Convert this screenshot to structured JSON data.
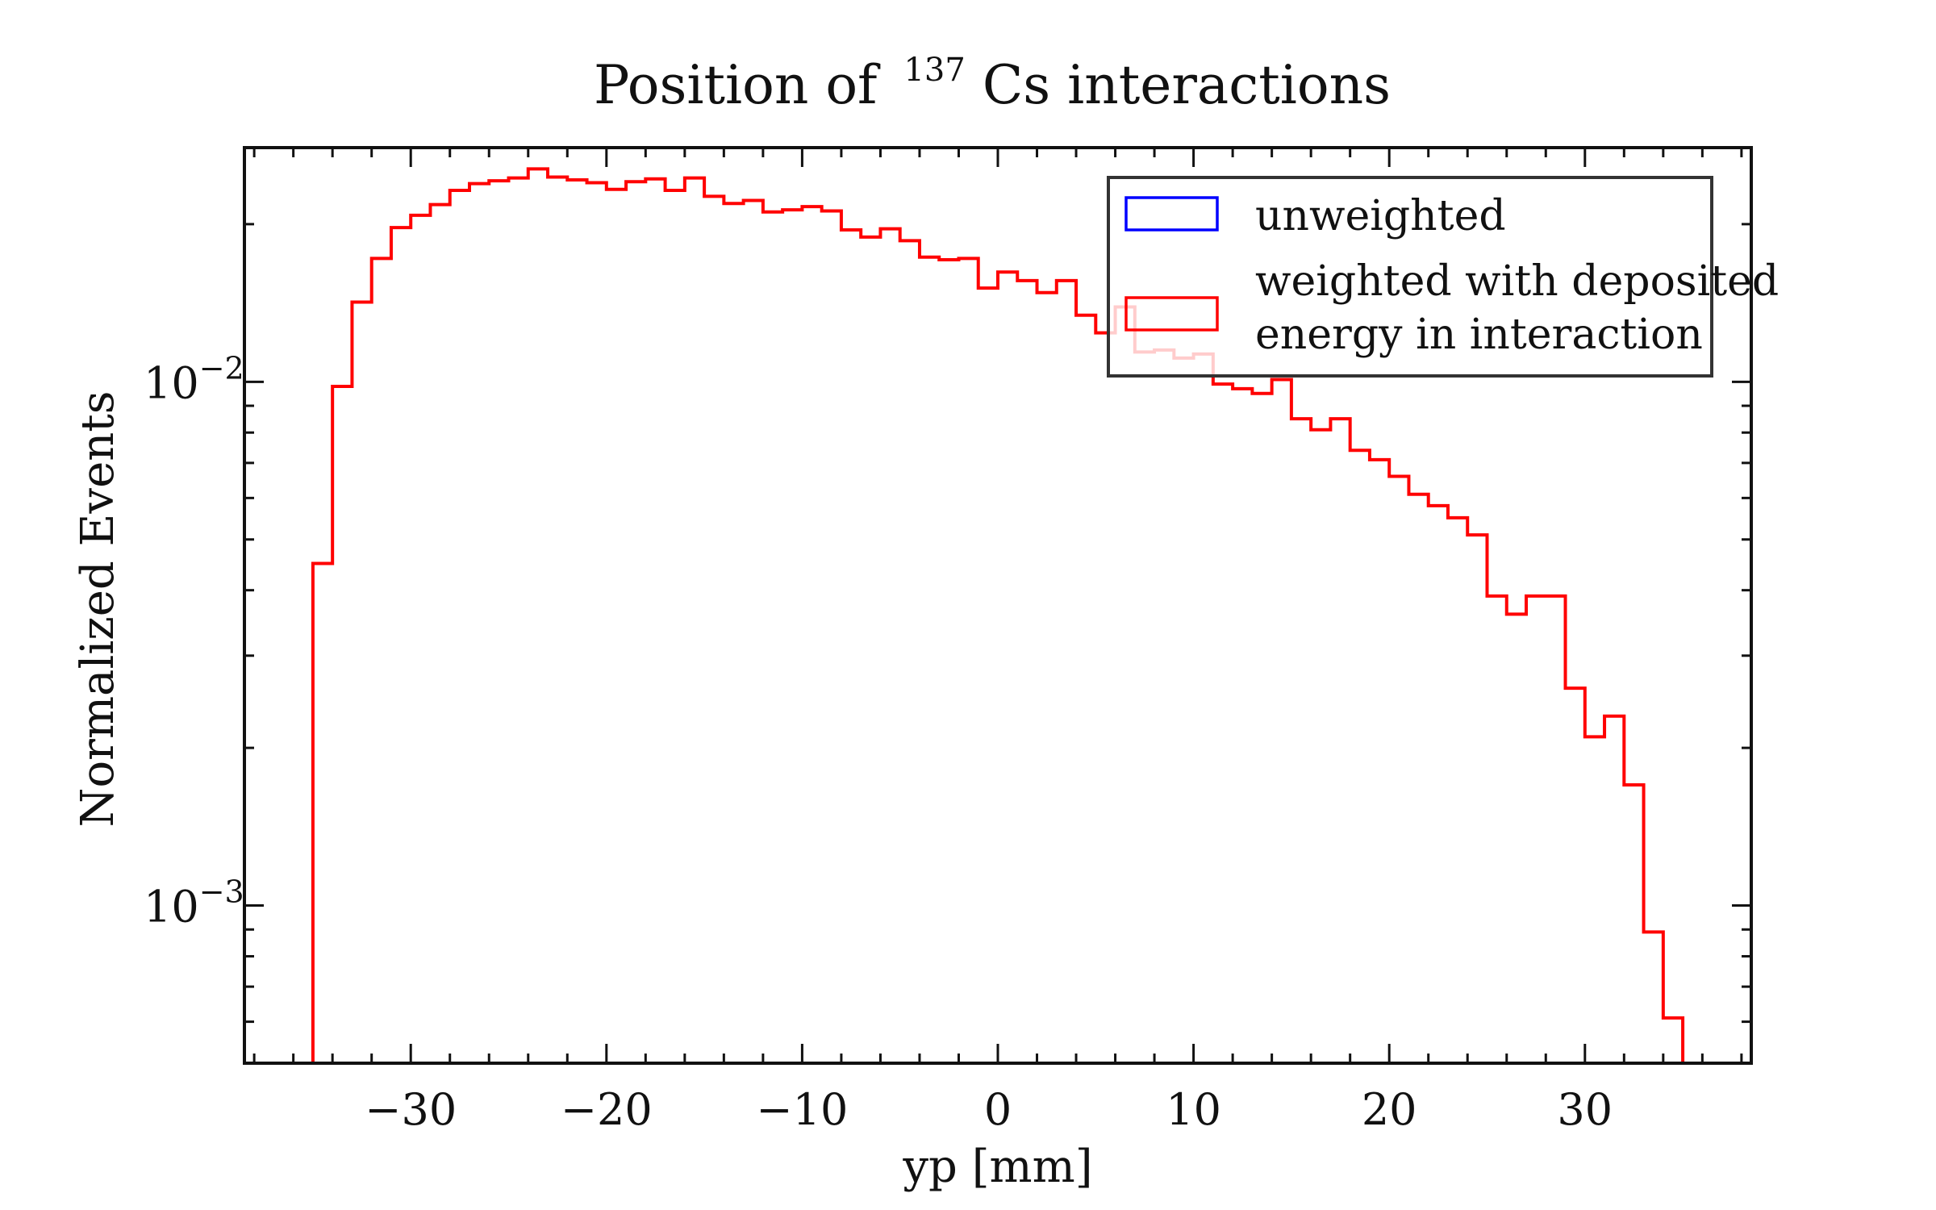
{
  "chart_data": {
    "type": "step",
    "title": "Position of",
    "title_superscript": "137",
    "title_rest": "Cs interactions",
    "xlabel": "yp [mm]",
    "ylabel": "Normalized Events",
    "xlim": [
      -38.5,
      38.5
    ],
    "ylim": [
      0.0005,
      0.028
    ],
    "yscale": "log",
    "grid": false,
    "legend_position": "top-right",
    "x_ticks": [
      "−30",
      "−20",
      "−10",
      "0",
      "10",
      "20",
      "30"
    ],
    "x_tick_values": [
      -30,
      -20,
      -10,
      0,
      10,
      20,
      30
    ],
    "y_ticks": [
      {
        "value": 0.01,
        "base": "10",
        "exponent": "−2"
      },
      {
        "value": 0.001,
        "base": "10",
        "exponent": "−3"
      }
    ],
    "bin_edges": [
      -35,
      -34,
      -33,
      -32,
      -31,
      -30,
      -29,
      -28,
      -27,
      -26,
      -25,
      -24,
      -23,
      -22,
      -21,
      -20,
      -19,
      -18,
      -17,
      -16,
      -15,
      -14,
      -13,
      -12,
      -11,
      -10,
      -9,
      -8,
      -7,
      -6,
      -5,
      -4,
      -3,
      -2,
      -1,
      0,
      1,
      2,
      3,
      4,
      5,
      6,
      7,
      8,
      9,
      10,
      11,
      12,
      13,
      14,
      15,
      16,
      17,
      18,
      19,
      20,
      21,
      22,
      23,
      24,
      25,
      26,
      27,
      28,
      29,
      30,
      31,
      32,
      33,
      34,
      35
    ],
    "series": [
      {
        "name": "unweighted",
        "color": "#0000ff",
        "values": []
      },
      {
        "name": "weighted with deposited energy in interaction",
        "color": "#ff0000",
        "values": [
          0.0045,
          0.0098,
          0.0142,
          0.0172,
          0.0197,
          0.0208,
          0.0218,
          0.0232,
          0.0239,
          0.0242,
          0.0245,
          0.0255,
          0.0246,
          0.0243,
          0.024,
          0.0233,
          0.0241,
          0.0244,
          0.0232,
          0.0245,
          0.0226,
          0.0219,
          0.0222,
          0.0211,
          0.0213,
          0.0216,
          0.0212,
          0.0195,
          0.0189,
          0.0196,
          0.0186,
          0.0173,
          0.0171,
          0.0172,
          0.0151,
          0.0162,
          0.0156,
          0.0148,
          0.0156,
          0.0134,
          0.0124,
          0.0139,
          0.0114,
          0.0115,
          0.0111,
          0.0113,
          0.0099,
          0.0097,
          0.0095,
          0.0101,
          0.0085,
          0.0081,
          0.0085,
          0.0074,
          0.0071,
          0.0066,
          0.0061,
          0.0058,
          0.0055,
          0.0051,
          0.0039,
          0.0036,
          0.0039,
          0.0039,
          0.0026,
          0.0021,
          0.0023,
          0.0017,
          0.00089,
          0.00061
        ]
      }
    ]
  }
}
